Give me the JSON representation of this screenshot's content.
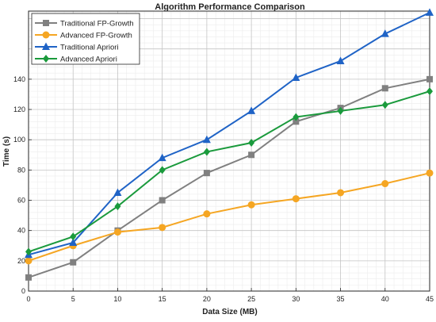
{
  "chart_data": {
    "type": "line",
    "title": "Algorithm Performance Comparison",
    "xlabel": "Data Size (MB)",
    "ylabel": "Time (s)",
    "x": [
      0,
      5,
      10,
      15,
      20,
      25,
      30,
      35,
      40,
      45
    ],
    "xlim": [
      0,
      45
    ],
    "ylim": [
      0,
      185
    ],
    "x_ticks": [
      0,
      5,
      10,
      15,
      20,
      25,
      30,
      35,
      40,
      45
    ],
    "y_ticks": [
      0,
      20,
      40,
      60,
      80,
      100,
      120,
      140
    ],
    "grid": "major and minor",
    "legend_position": "top-left",
    "series": [
      {
        "name": "Traditional FP-Growth",
        "color": "#808080",
        "marker": "square",
        "values": [
          9,
          19,
          40,
          60,
          78,
          90,
          112,
          121,
          134,
          140
        ]
      },
      {
        "name": "Advanced FP-Growth",
        "color": "#f5a623",
        "marker": "circle",
        "values": [
          20,
          30,
          39,
          42,
          51,
          57,
          61,
          65,
          71,
          78
        ]
      },
      {
        "name": "Traditional Apriori",
        "color": "#1f63c6",
        "marker": "triangle",
        "values": [
          24,
          32,
          65,
          88,
          100,
          119,
          141,
          152,
          170,
          184
        ]
      },
      {
        "name": "Advanced  Apriori",
        "color": "#1a9a3c",
        "marker": "diamond",
        "values": [
          26,
          36,
          56,
          80,
          92,
          98,
          115,
          119,
          123,
          132
        ]
      }
    ]
  }
}
